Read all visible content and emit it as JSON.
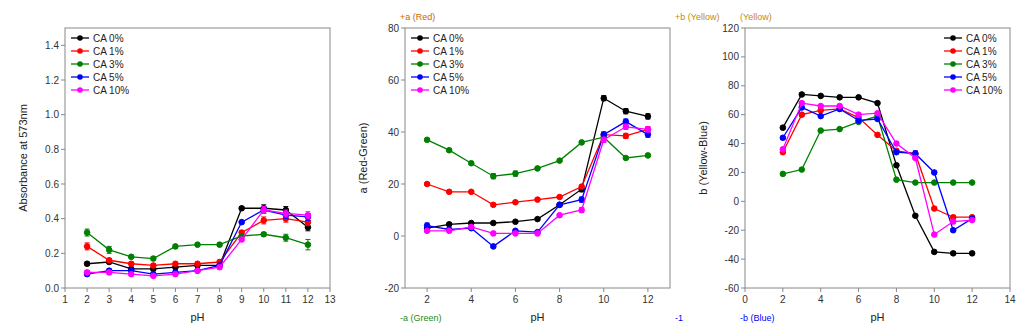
{
  "chart_data": [
    {
      "type": "line",
      "xlabel": "pH",
      "ylabel": "Absorbance at 573nm",
      "xlim": [
        1,
        13
      ],
      "ylim": [
        0.0,
        1.5
      ],
      "xticks": [
        1,
        2,
        3,
        4,
        5,
        6,
        7,
        8,
        9,
        10,
        11,
        12,
        13
      ],
      "yticks": [
        {
          "value": 0.0,
          "label": "0.0"
        },
        0.2,
        0.4,
        0.6,
        0.8,
        {
          "value": 1.0,
          "label": "1.0"
        },
        1.2,
        1.4
      ],
      "grid": false,
      "legend": "upper-left",
      "marker": "circle",
      "x": [
        2,
        3,
        4,
        5,
        6,
        7,
        8,
        9,
        10,
        11,
        12
      ],
      "series": [
        {
          "name": "CA 0%",
          "color": "black",
          "values": [
            0.14,
            0.15,
            0.11,
            0.11,
            0.12,
            0.13,
            0.13,
            0.46,
            0.46,
            0.45,
            0.35
          ],
          "yerr": [
            0.01,
            0.01,
            0.01,
            0.01,
            0.01,
            0.01,
            0.01,
            0.01,
            0.02,
            0.02,
            0.02
          ]
        },
        {
          "name": "CA 1%",
          "color": "red",
          "values": [
            0.24,
            0.16,
            0.14,
            0.13,
            0.14,
            0.14,
            0.15,
            0.32,
            0.39,
            0.4,
            0.38
          ],
          "yerr": [
            0.02,
            0.01,
            0.01,
            0.01,
            0.01,
            0.01,
            0.01,
            0.01,
            0.02,
            0.02,
            0.02
          ]
        },
        {
          "name": "CA 3%",
          "color": "green",
          "values": [
            0.32,
            0.22,
            0.18,
            0.17,
            0.24,
            0.25,
            0.25,
            0.3,
            0.31,
            0.29,
            0.25
          ],
          "yerr": [
            0.02,
            0.02,
            0.01,
            0.01,
            0.01,
            0.01,
            0.01,
            0.01,
            0.01,
            0.02,
            0.03
          ]
        },
        {
          "name": "CA 5%",
          "color": "blue",
          "values": [
            0.08,
            0.1,
            0.1,
            0.08,
            0.09,
            0.1,
            0.13,
            0.38,
            0.45,
            0.42,
            0.41
          ],
          "yerr": [
            0.01,
            0.01,
            0.01,
            0.01,
            0.01,
            0.01,
            0.01,
            0.01,
            0.02,
            0.02,
            0.02
          ]
        },
        {
          "name": "CA 10%",
          "color": "magenta",
          "values": [
            0.09,
            0.09,
            0.08,
            0.07,
            0.08,
            0.1,
            0.12,
            0.28,
            0.45,
            0.43,
            0.42
          ],
          "yerr": [
            0.01,
            0.01,
            0.01,
            0.01,
            0.01,
            0.01,
            0.01,
            0.01,
            0.02,
            0.02,
            0.02
          ]
        }
      ]
    },
    {
      "type": "line",
      "xlabel": "pH",
      "ylabel": "a (Red-Green)",
      "xlim": [
        1,
        13
      ],
      "ylim": [
        -20,
        80
      ],
      "xticks": [
        2,
        4,
        6,
        8,
        10,
        12
      ],
      "yticks": [
        -20,
        0,
        20,
        40,
        60,
        80
      ],
      "grid": false,
      "legend": "upper-left",
      "marker": "circle",
      "x": [
        2,
        3,
        4,
        5,
        6,
        7,
        8,
        9,
        10,
        11,
        12
      ],
      "series": [
        {
          "name": "CA 0%",
          "color": "black",
          "values": [
            3.0,
            4.5,
            5.0,
            5.0,
            5.5,
            6.5,
            12.0,
            18.0,
            53.0,
            48.0,
            46.0
          ],
          "yerr": [
            0.5,
            0.5,
            0.5,
            0.5,
            0.5,
            0.5,
            0.5,
            1.0,
            1.0,
            1.0,
            1.0
          ]
        },
        {
          "name": "CA 1%",
          "color": "red",
          "values": [
            20.0,
            17.0,
            17.0,
            12.0,
            13.0,
            14.0,
            15.0,
            19.0,
            39.0,
            38.5,
            41.0
          ],
          "yerr": [
            0.5,
            0.5,
            0.5,
            0.5,
            0.5,
            0.5,
            0.5,
            0.5,
            1.0,
            1.0,
            1.0
          ]
        },
        {
          "name": "CA 3%",
          "color": "green",
          "values": [
            37.0,
            33.0,
            28.0,
            23.0,
            24.0,
            26.0,
            29.0,
            36.0,
            38.0,
            30.0,
            31.0
          ],
          "yerr": [
            0.5,
            0.5,
            0.5,
            1.0,
            1.0,
            0.5,
            0.5,
            0.5,
            0.5,
            0.5,
            0.5
          ]
        },
        {
          "name": "CA 5%",
          "color": "blue",
          "values": [
            4.0,
            2.5,
            3.0,
            -4.0,
            2.0,
            1.5,
            12.0,
            14.0,
            39.0,
            44.0,
            39.0
          ],
          "yerr": [
            1.0,
            0.5,
            0.5,
            0.5,
            0.5,
            0.5,
            0.5,
            1.0,
            1.0,
            1.0,
            1.0
          ]
        },
        {
          "name": "CA 10%",
          "color": "magenta",
          "values": [
            2.0,
            2.0,
            3.5,
            1.0,
            1.0,
            1.0,
            8.0,
            10.0,
            37.0,
            42.0,
            41.0
          ],
          "yerr": [
            0.5,
            0.5,
            0.5,
            0.5,
            0.5,
            0.5,
            0.5,
            1.0,
            1.0,
            1.0,
            1.0
          ]
        }
      ],
      "annotations": [
        {
          "text": "+a (Red)",
          "color": "#CC6600"
        },
        {
          "text": "-a (Green)",
          "color": "#228B22"
        },
        {
          "text": "+b (Yellow)",
          "color": "#CC8800"
        },
        {
          "text": "-1",
          "color": "blue"
        }
      ]
    },
    {
      "type": "line",
      "xlabel": "pH",
      "ylabel": "b (Yellow-Blue)",
      "xlim": [
        0,
        14
      ],
      "ylim": [
        -60,
        120
      ],
      "xticks": [
        0,
        2,
        4,
        6,
        8,
        10,
        12,
        14
      ],
      "yticks": [
        -60,
        -40,
        -20,
        0,
        20,
        40,
        60,
        80,
        100,
        120
      ],
      "grid": false,
      "legend": "upper-right",
      "marker": "circle",
      "x": [
        2,
        3,
        4,
        5,
        6,
        7,
        8,
        9,
        10,
        11,
        12
      ],
      "series": [
        {
          "name": "CA 0%",
          "color": "black",
          "values": [
            51.0,
            74.0,
            73.0,
            72.0,
            72.0,
            68.0,
            25.0,
            -10.0,
            -35.0,
            -36.0,
            -36.0
          ],
          "yerr": [
            1.0,
            1.0,
            1.0,
            1.0,
            1.0,
            1.0,
            1.0,
            1.0,
            1.0,
            1.0,
            1.0
          ]
        },
        {
          "name": "CA 1%",
          "color": "red",
          "values": [
            34.0,
            60.0,
            63.0,
            64.0,
            58.0,
            46.0,
            35.0,
            33.0,
            -5.0,
            -11.0,
            -11.0
          ],
          "yerr": [
            1.0,
            1.0,
            1.0,
            1.0,
            1.0,
            1.0,
            1.0,
            1.0,
            1.0,
            1.0,
            1.0
          ]
        },
        {
          "name": "CA 3%",
          "color": "green",
          "values": [
            19.0,
            22.0,
            49.0,
            50.0,
            55.0,
            59.0,
            15.0,
            13.0,
            13.0,
            13.0,
            13.0
          ],
          "yerr": [
            0.5,
            0.5,
            0.5,
            0.5,
            0.5,
            0.5,
            0.5,
            0.5,
            0.5,
            0.5,
            0.5
          ]
        },
        {
          "name": "CA 5%",
          "color": "blue",
          "values": [
            44.0,
            65.0,
            59.0,
            64.0,
            56.0,
            57.0,
            34.0,
            33.0,
            20.0,
            -20.0,
            -12.0
          ],
          "yerr": [
            1.0,
            1.0,
            1.0,
            1.0,
            1.0,
            1.0,
            1.0,
            2.0,
            1.0,
            1.0,
            1.0
          ]
        },
        {
          "name": "CA 10%",
          "color": "magenta",
          "values": [
            36.0,
            68.0,
            66.0,
            66.0,
            60.0,
            61.0,
            40.0,
            30.0,
            -23.0,
            -14.0,
            -13.0
          ],
          "yerr": [
            1.0,
            1.0,
            1.0,
            1.0,
            1.0,
            1.0,
            1.0,
            1.0,
            1.0,
            1.0,
            1.0
          ]
        }
      ],
      "annotations": [
        {
          "text": "(Yellow)",
          "color": "#CC8800"
        },
        {
          "text": "-b (Blue)",
          "color": "blue"
        }
      ]
    }
  ]
}
